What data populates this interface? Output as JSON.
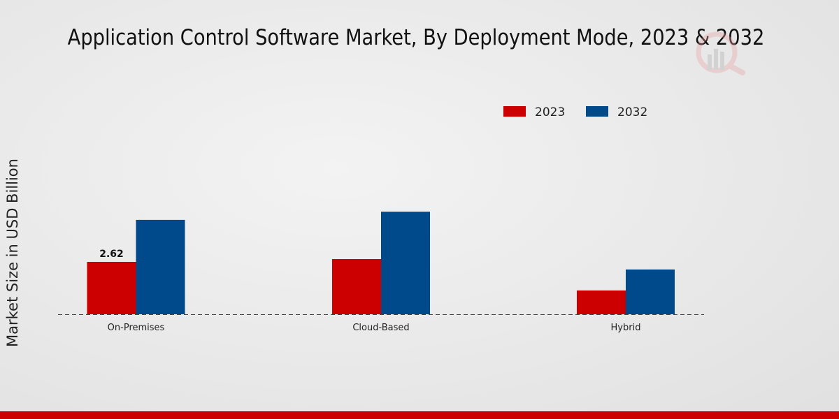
{
  "chart_data": {
    "type": "bar",
    "title": "Application Control Software Market, By Deployment Mode, 2023 & 2032",
    "xlabel": "",
    "ylabel": "Market Size in USD Billion",
    "categories": [
      "On-Premises",
      "Cloud-Based",
      "Hybrid"
    ],
    "series": [
      {
        "name": "2023",
        "color": "#cc0000",
        "values": [
          2.62,
          2.76,
          1.19
        ]
      },
      {
        "name": "2032",
        "color": "#004a8c",
        "values": [
          4.72,
          5.13,
          2.24
        ]
      }
    ],
    "data_labels": [
      {
        "series": "2023",
        "category": "On-Premises",
        "text": "2.62"
      }
    ],
    "ylim": [
      0,
      6.5
    ],
    "grid": false,
    "legend_position": "top-right"
  }
}
